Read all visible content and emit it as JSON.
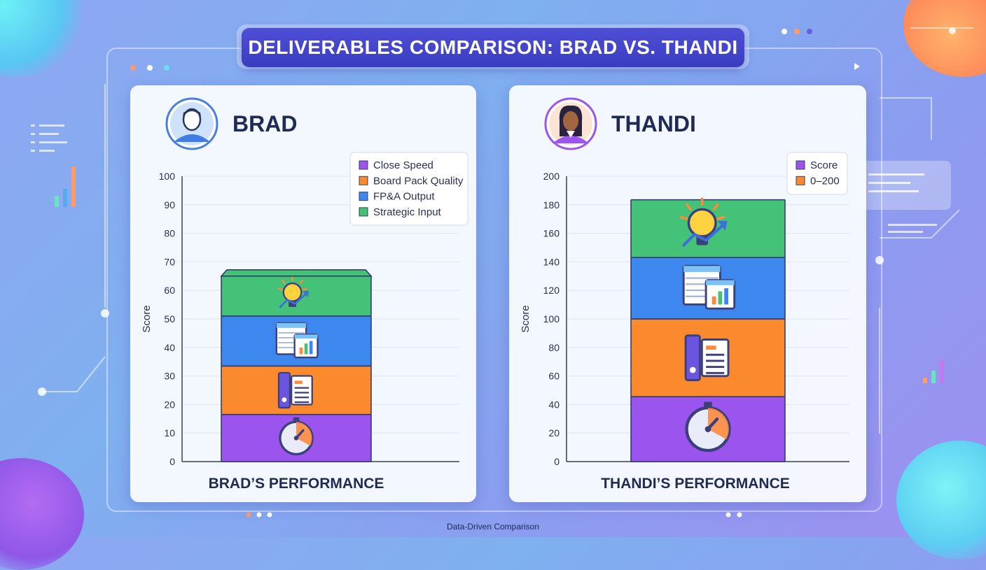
{
  "title": "DELIVERABLES COMPARISON: BRAD VS. THANDI",
  "footer": "Data-Driven Comparison",
  "colors": {
    "close_speed": "#9b55ee",
    "board_pack": "#fb8a2e",
    "fpa_output": "#3d88ee",
    "strategic_input": "#44c278"
  },
  "chart_data": [
    {
      "type": "bar",
      "stacked": true,
      "person": "BRAD",
      "avatar": "user-avatar-icon",
      "title": "BRAD’S PERFORMANCE",
      "xlabel": "",
      "ylabel": "Score",
      "ylim": [
        0,
        100
      ],
      "yticks": [
        0,
        10,
        20,
        30,
        40,
        50,
        60,
        70,
        80,
        90,
        100
      ],
      "grid": true,
      "legend_position": "top-right",
      "legend": [
        "Close Speed",
        "Board Pack Quality",
        "FP&A Output",
        "Strategic Input"
      ],
      "series": [
        {
          "name": "Close Speed",
          "value": 16.5,
          "icon": "stopwatch-icon"
        },
        {
          "name": "Board Pack Quality",
          "value": 17,
          "icon": "document-binder-icon"
        },
        {
          "name": "FP&A Output",
          "value": 17.5,
          "icon": "spreadsheet-chart-icon"
        },
        {
          "name": "Strategic Input",
          "value": 14,
          "icon": "lightbulb-growth-icon"
        }
      ]
    },
    {
      "type": "bar",
      "stacked": true,
      "person": "THANDI",
      "avatar": "user-avatar-icon",
      "title": "THANDI’S PERFORMANCE",
      "xlabel": "",
      "ylabel": "Score",
      "ylim": [
        0,
        200
      ],
      "yticks": [
        0,
        20,
        40,
        60,
        80,
        100,
        120,
        140,
        160,
        180,
        200
      ],
      "grid": true,
      "legend_position": "top-right",
      "legend": [
        "Score",
        "0–200"
      ],
      "series": [
        {
          "name": "Close Speed",
          "value": 45.5,
          "icon": "stopwatch-icon"
        },
        {
          "name": "Board Pack Quality",
          "value": 54.5,
          "icon": "document-binder-icon"
        },
        {
          "name": "FP&A Output",
          "value": 43,
          "icon": "spreadsheet-chart-icon"
        },
        {
          "name": "Strategic Input",
          "value": 40.5,
          "icon": "lightbulb-growth-icon"
        }
      ]
    }
  ]
}
